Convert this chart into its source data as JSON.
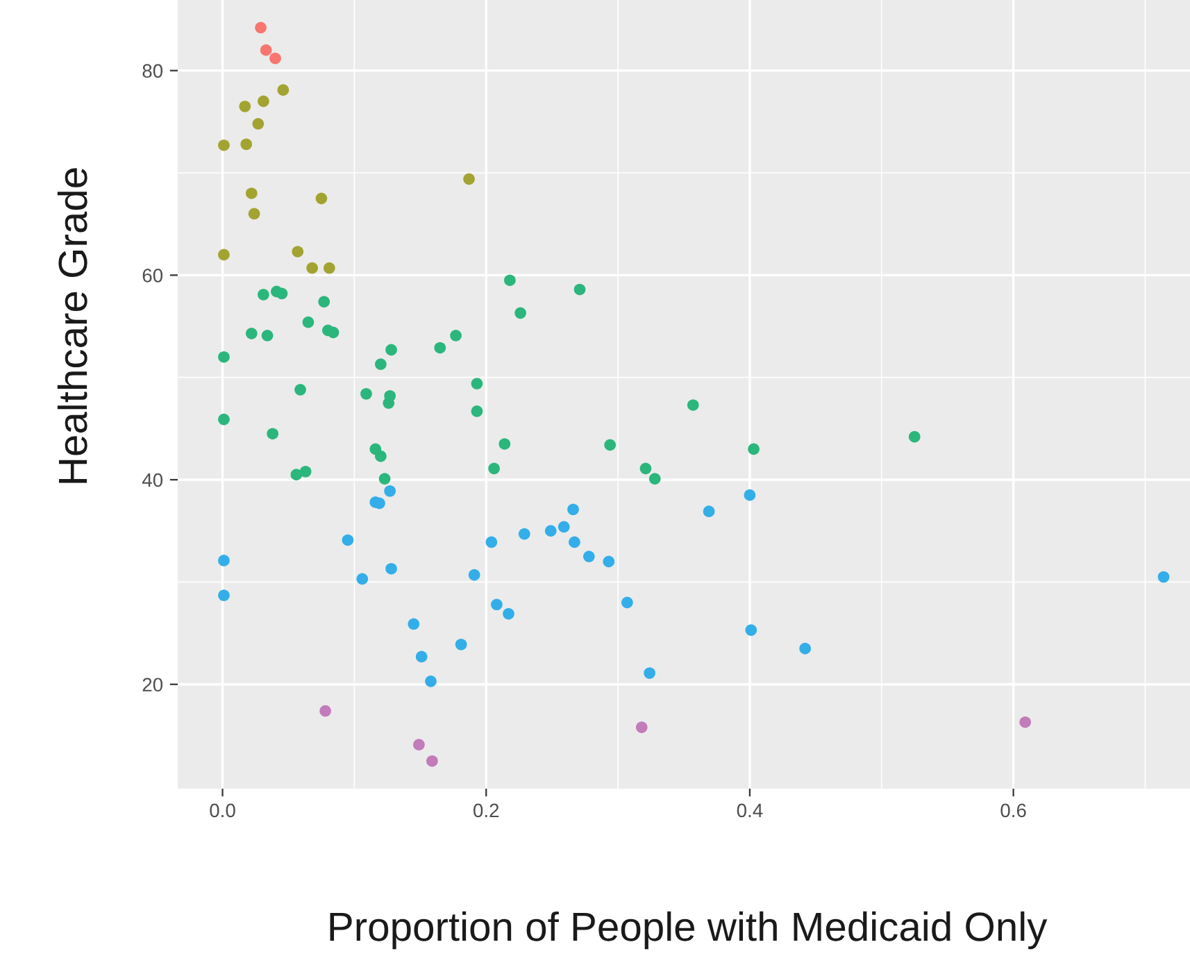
{
  "chart_data": {
    "type": "scatter",
    "xlabel": "Proportion of People with Medicaid Only",
    "ylabel": "Healthcare Grade",
    "xlim": [
      -0.034,
      0.734
    ],
    "ylim": [
      9.8,
      86.9
    ],
    "xticks": [
      {
        "value": 0,
        "label": "0.0"
      },
      {
        "value": 0.2,
        "label": "0.2"
      },
      {
        "value": 0.4,
        "label": "0.4"
      },
      {
        "value": 0.6,
        "label": "0.6"
      }
    ],
    "yticks": [
      20,
      40,
      60,
      80
    ],
    "grid": true,
    "marker": "circle",
    "series": [
      {
        "color": "#f8766d",
        "x": [
          0.029,
          0.033,
          0.04
        ],
        "values": [
          84.2,
          82.0,
          81.2
        ]
      },
      {
        "color": "#a3a331",
        "x": [
          0.046,
          0.031,
          0.017,
          0.027,
          0.001,
          0.018,
          0.187,
          0.075,
          0.022,
          0.024,
          0.001,
          0.057,
          0.068,
          0.081
        ],
        "values": [
          78.1,
          77.0,
          76.5,
          74.8,
          72.7,
          72.8,
          69.4,
          67.5,
          68.0,
          66.0,
          62.0,
          62.3,
          60.7,
          60.7
        ]
      },
      {
        "color": "#2bb67c",
        "x": [
          0.218,
          0.271,
          0.226,
          0.031,
          0.041,
          0.045,
          0.077,
          0.065,
          0.08,
          0.084,
          0.022,
          0.034,
          0.001,
          0.128,
          0.12,
          0.165,
          0.177,
          0.193,
          0.193,
          0.059,
          0.109,
          0.127,
          0.126,
          0.357,
          0.001,
          0.038,
          0.056,
          0.063,
          0.116,
          0.12,
          0.123,
          0.214,
          0.206,
          0.294,
          0.321,
          0.328,
          0.403,
          0.525
        ],
        "values": [
          59.5,
          58.6,
          56.3,
          58.1,
          58.4,
          58.2,
          57.4,
          55.4,
          54.6,
          54.4,
          54.3,
          54.1,
          52.0,
          52.7,
          51.3,
          52.9,
          54.1,
          49.4,
          46.7,
          48.8,
          48.4,
          48.2,
          47.5,
          47.3,
          45.9,
          44.5,
          40.5,
          40.8,
          43.0,
          42.3,
          40.1,
          43.5,
          41.1,
          43.4,
          41.1,
          40.1,
          43.0,
          44.2
        ]
      },
      {
        "color": "#33aee8",
        "x": [
          0.127,
          0.116,
          0.119,
          0.095,
          0.001,
          0.001,
          0.106,
          0.128,
          0.191,
          0.204,
          0.229,
          0.249,
          0.259,
          0.266,
          0.267,
          0.278,
          0.293,
          0.307,
          0.208,
          0.217,
          0.145,
          0.181,
          0.151,
          0.158,
          0.324,
          0.369,
          0.4,
          0.401,
          0.442,
          0.714
        ],
        "values": [
          38.9,
          37.8,
          37.7,
          34.1,
          32.1,
          28.7,
          30.3,
          31.3,
          30.7,
          33.9,
          34.7,
          35.0,
          35.4,
          37.1,
          33.9,
          32.5,
          32.0,
          28.0,
          27.8,
          26.9,
          25.9,
          23.9,
          22.7,
          20.3,
          21.1,
          36.9,
          38.5,
          25.3,
          23.5,
          30.5
        ]
      },
      {
        "color": "#c27bbb",
        "x": [
          0.078,
          0.149,
          0.159,
          0.318,
          0.609
        ],
        "values": [
          17.4,
          14.1,
          12.5,
          15.8,
          16.3
        ]
      }
    ]
  }
}
